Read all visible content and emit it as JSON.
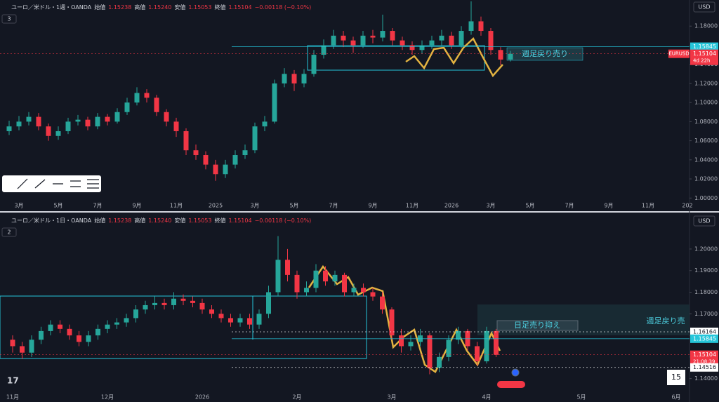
{
  "chart_data": [
    {
      "type": "candlestick",
      "title": "ユーロ／米ドル・1週・OANDA",
      "ohlc_header": [
        {
          "name": "始値",
          "value": "1.15238"
        },
        {
          "name": "高値",
          "value": "1.15240"
        },
        {
          "name": "安値",
          "value": "1.15053"
        },
        {
          "name": "終値",
          "value": "1.15104"
        }
      ],
      "change": "−0.00118 (−0.10%)",
      "pane_number": "3",
      "currency": "USD",
      "categories": [
        null,
        "3月",
        null,
        null,
        null,
        "5月",
        null,
        null,
        null,
        "7月",
        null,
        null,
        null,
        "9月",
        null,
        null,
        null,
        "11月",
        null,
        null,
        null,
        "2025",
        null,
        null,
        null,
        "3月",
        null,
        null,
        null,
        "5月",
        null,
        null,
        null,
        "7月",
        null,
        null,
        null,
        "9月",
        null,
        null,
        null,
        "11月",
        null,
        null,
        null,
        "2026",
        null,
        null,
        null,
        "3月",
        null,
        null,
        null,
        "5月",
        null,
        null,
        null,
        "7月",
        null,
        null,
        null,
        "9月",
        null,
        null,
        null,
        "11月",
        null,
        null,
        null,
        "202"
      ],
      "open": [
        1.07,
        1.075,
        1.08,
        1.085,
        1.075,
        1.065,
        1.07,
        1.08,
        1.082,
        1.075,
        1.085,
        1.08,
        1.09,
        1.1,
        1.11,
        1.105,
        1.09,
        1.08,
        1.07,
        1.05,
        1.045,
        1.035,
        1.025,
        1.035,
        1.045,
        1.05,
        1.075,
        1.08,
        1.12,
        1.13,
        1.12,
        1.13,
        1.15,
        1.16,
        1.17,
        1.165,
        1.16,
        1.17,
        1.168,
        1.175,
        1.165,
        1.16,
        1.155,
        1.16,
        1.165,
        1.17,
        1.16,
        1.175,
        1.185,
        1.175,
        1.155,
        1.145,
        null,
        null,
        null,
        null,
        null,
        null,
        null,
        null,
        null,
        null,
        null,
        null,
        null,
        null,
        null,
        null,
        null,
        null
      ],
      "high": [
        1.081,
        1.086,
        1.09,
        1.089,
        1.078,
        1.075,
        1.084,
        1.087,
        1.085,
        1.089,
        1.088,
        1.094,
        1.105,
        1.116,
        1.114,
        1.108,
        1.093,
        1.084,
        1.073,
        1.056,
        1.049,
        1.04,
        1.04,
        1.05,
        1.056,
        1.079,
        1.086,
        1.124,
        1.136,
        1.134,
        1.135,
        1.155,
        1.166,
        1.176,
        1.175,
        1.169,
        1.175,
        1.176,
        1.192,
        1.178,
        1.169,
        1.164,
        1.165,
        1.17,
        1.176,
        1.174,
        1.18,
        1.206,
        1.19,
        1.178,
        1.158,
        1.154,
        null,
        null,
        null,
        null,
        null,
        null,
        null,
        null,
        null,
        null,
        null,
        null,
        null,
        null,
        null,
        null,
        null,
        null
      ],
      "low": [
        1.066,
        1.071,
        1.076,
        1.071,
        1.06,
        1.061,
        1.067,
        1.076,
        1.071,
        1.072,
        1.076,
        1.078,
        1.087,
        1.097,
        1.1,
        1.086,
        1.075,
        1.064,
        1.045,
        1.04,
        1.03,
        1.018,
        1.021,
        1.031,
        1.041,
        1.047,
        1.07,
        1.078,
        1.116,
        1.112,
        1.116,
        1.127,
        1.146,
        1.156,
        1.158,
        1.152,
        1.157,
        1.162,
        1.164,
        1.16,
        1.155,
        1.15,
        1.151,
        1.156,
        1.16,
        1.156,
        1.157,
        1.171,
        1.17,
        1.15,
        1.139,
        1.143,
        null,
        null,
        null,
        null,
        null,
        null,
        null,
        null,
        null,
        null,
        null,
        null,
        null,
        null,
        null,
        null,
        null,
        null
      ],
      "close": [
        1.075,
        1.08,
        1.085,
        1.075,
        1.065,
        1.07,
        1.08,
        1.082,
        1.075,
        1.085,
        1.08,
        1.09,
        1.1,
        1.11,
        1.105,
        1.09,
        1.08,
        1.07,
        1.05,
        1.045,
        1.035,
        1.025,
        1.035,
        1.045,
        1.05,
        1.075,
        1.08,
        1.12,
        1.13,
        1.12,
        1.13,
        1.15,
        1.16,
        1.17,
        1.165,
        1.16,
        1.17,
        1.168,
        1.175,
        1.165,
        1.16,
        1.155,
        1.16,
        1.165,
        1.17,
        1.16,
        1.175,
        1.185,
        1.175,
        1.155,
        1.145,
        1.151,
        null,
        null,
        null,
        null,
        null,
        null,
        null,
        null,
        null,
        null,
        null,
        null,
        null,
        null,
        null,
        null,
        null,
        null
      ],
      "up_color": "#26a69a",
      "down_color": "#f23645",
      "ylim": [
        0.998,
        1.2
      ],
      "yticks": [
        {
          "value": 1.0,
          "label": "1.00000"
        },
        {
          "value": 1.02,
          "label": "1.02000"
        },
        {
          "value": 1.04,
          "label": "1.04000"
        },
        {
          "value": 1.06,
          "label": "1.06000"
        },
        {
          "value": 1.08,
          "label": "1.08000"
        },
        {
          "value": 1.1,
          "label": "1.10000"
        },
        {
          "value": 1.12,
          "label": "1.12000"
        },
        {
          "value": 1.14,
          "label": "1.14000"
        },
        {
          "value": 1.16,
          "label": "1.16000"
        },
        {
          "value": 1.18,
          "label": "1.18000"
        }
      ],
      "price_lines": [
        {
          "value": 1.15845,
          "color": "#26c6da"
        },
        {
          "value": 1.15104,
          "color": "#f23645",
          "symbol": "EURUSD",
          "countdown": "4d 22h"
        }
      ],
      "annotations": [
        "週足戻り売り"
      ]
    },
    {
      "type": "candlestick",
      "title": "ユーロ／米ドル・1日・OANDA",
      "ohlc_header": [
        {
          "name": "始値",
          "value": "1.15238"
        },
        {
          "name": "高値",
          "value": "1.15240"
        },
        {
          "name": "安値",
          "value": "1.15053"
        },
        {
          "name": "終値",
          "value": "1.15104"
        }
      ],
      "change": "−0.00118 (−0.10%)",
      "pane_number": "2",
      "currency": "USD",
      "badge": "15",
      "categories": [
        "11月",
        null,
        null,
        null,
        null,
        null,
        null,
        null,
        null,
        null,
        "12月",
        null,
        null,
        null,
        null,
        null,
        null,
        null,
        null,
        null,
        "2026",
        null,
        null,
        null,
        null,
        null,
        null,
        null,
        null,
        null,
        "2月",
        null,
        null,
        null,
        null,
        null,
        null,
        null,
        null,
        null,
        "3月",
        null,
        null,
        null,
        null,
        null,
        null,
        null,
        null,
        null,
        "4月",
        null,
        null,
        null,
        null,
        null,
        null,
        null,
        null,
        null,
        "5月",
        null,
        null,
        null,
        null,
        null,
        null,
        null,
        null,
        null,
        "6月"
      ],
      "open": [
        1.158,
        1.155,
        1.152,
        1.158,
        1.162,
        1.165,
        1.163,
        1.16,
        1.157,
        1.16,
        1.163,
        1.165,
        1.166,
        1.168,
        1.172,
        1.174,
        1.175,
        1.174,
        1.177,
        1.176,
        1.175,
        1.172,
        1.17,
        1.168,
        1.166,
        1.168,
        1.165,
        1.17,
        1.18,
        1.195,
        1.188,
        1.18,
        1.182,
        1.19,
        1.185,
        1.188,
        1.18,
        1.182,
        1.18,
        1.178,
        1.172,
        1.16,
        1.155,
        1.157,
        1.16,
        1.145,
        1.15,
        1.158,
        1.162,
        1.155,
        1.148,
        1.162,
        null,
        null,
        null,
        null,
        null,
        null,
        null,
        null,
        null,
        null,
        null,
        null,
        null,
        null,
        null,
        null,
        null,
        null,
        null
      ],
      "high": [
        1.16,
        1.157,
        1.16,
        1.164,
        1.167,
        1.167,
        1.165,
        1.162,
        1.162,
        1.165,
        1.167,
        1.168,
        1.17,
        1.174,
        1.176,
        1.178,
        1.177,
        1.18,
        1.179,
        1.178,
        1.177,
        1.174,
        1.172,
        1.17,
        1.17,
        1.17,
        1.172,
        1.183,
        1.206,
        1.2,
        1.19,
        1.185,
        1.193,
        1.192,
        1.19,
        1.189,
        1.184,
        1.184,
        1.182,
        1.18,
        1.173,
        1.163,
        1.16,
        1.163,
        1.161,
        1.152,
        1.16,
        1.164,
        1.163,
        1.157,
        1.164,
        1.163,
        null,
        null,
        null,
        null,
        null,
        null,
        null,
        null,
        null,
        null,
        null,
        null,
        null,
        null,
        null,
        null,
        null,
        null,
        null
      ],
      "low": [
        1.152,
        1.149,
        1.15,
        1.156,
        1.16,
        1.161,
        1.158,
        1.155,
        1.155,
        1.158,
        1.161,
        1.163,
        1.164,
        1.166,
        1.17,
        1.172,
        1.172,
        1.172,
        1.174,
        1.173,
        1.17,
        1.168,
        1.166,
        1.164,
        1.164,
        1.163,
        1.163,
        1.168,
        1.178,
        1.185,
        1.177,
        1.178,
        1.18,
        1.183,
        1.183,
        1.178,
        1.178,
        1.178,
        1.176,
        1.17,
        1.158,
        1.152,
        1.153,
        1.155,
        1.142,
        1.143,
        1.148,
        1.156,
        1.153,
        1.146,
        1.147,
        1.15,
        null,
        null,
        null,
        null,
        null,
        null,
        null,
        null,
        null,
        null,
        null,
        null,
        null,
        null,
        null,
        null,
        null,
        null,
        null
      ],
      "close": [
        1.155,
        1.152,
        1.158,
        1.162,
        1.165,
        1.163,
        1.16,
        1.157,
        1.16,
        1.163,
        1.165,
        1.166,
        1.168,
        1.172,
        1.174,
        1.175,
        1.174,
        1.177,
        1.176,
        1.175,
        1.172,
        1.17,
        1.168,
        1.166,
        1.168,
        1.165,
        1.17,
        1.18,
        1.195,
        1.188,
        1.18,
        1.182,
        1.19,
        1.185,
        1.188,
        1.18,
        1.182,
        1.18,
        1.178,
        1.172,
        1.16,
        1.155,
        1.157,
        1.16,
        1.145,
        1.15,
        1.158,
        1.162,
        1.155,
        1.148,
        1.162,
        1.151,
        null,
        null,
        null,
        null,
        null,
        null,
        null,
        null,
        null,
        null,
        null,
        null,
        null,
        null,
        null,
        null,
        null,
        null,
        null
      ],
      "up_color": "#26a69a",
      "down_color": "#f23645",
      "ylim": [
        1.135,
        1.212
      ],
      "yticks": [
        {
          "value": 1.14,
          "label": "1.14000"
        },
        {
          "value": 1.15,
          "label": "1.15000"
        },
        {
          "value": 1.16,
          "label": "1.16000"
        },
        {
          "value": 1.17,
          "label": "1.17000"
        },
        {
          "value": 1.18,
          "label": "1.18000"
        },
        {
          "value": 1.19,
          "label": "1.19000"
        },
        {
          "value": 1.2,
          "label": "1.20000"
        }
      ],
      "price_lines": [
        {
          "value": 1.16164,
          "color": "#ffffff"
        },
        {
          "value": 1.15845,
          "color": "#26c6da"
        },
        {
          "value": 1.15104,
          "color": "#f23645",
          "countdown": "21:08:39"
        },
        {
          "value": 1.14516,
          "color": "#ffffff"
        }
      ],
      "annotations": [
        "日足売り抑え",
        "週足戻り売"
      ]
    }
  ]
}
